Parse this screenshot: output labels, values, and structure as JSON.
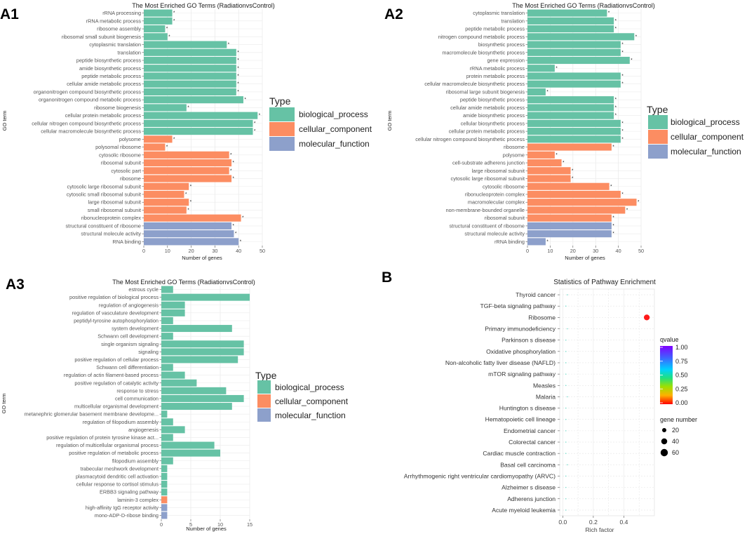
{
  "colors": {
    "biological": "#66c2a5",
    "cellular": "#fc8d62",
    "molecular": "#8da0cb",
    "grid": "#ebebeb",
    "axis": "#333333"
  },
  "chart_data": [
    {
      "id": "A1",
      "panel_label": "A1",
      "type": "bar",
      "orientation": "horizontal",
      "title": "The Most Enriched GO Terms (RadiationvsControl)",
      "xlabel": "Number of genes",
      "ylabel": "GO term",
      "xlim": [
        0,
        50
      ],
      "xticks": [
        0,
        10,
        20,
        30,
        40,
        50
      ],
      "legend": {
        "title": "Type",
        "items": [
          "biological_process",
          "cellular_component",
          "molecular_function"
        ]
      },
      "categories": [
        "rRNA processing",
        "rRNA metabolic process",
        "ribosome assembly",
        "ribosomal small subunit biogenesis",
        "cytoplasmic translation",
        "translation",
        "peptide biosynthetic process",
        "amide biosynthetic process",
        "peptide metabolic process",
        "cellular amide metabolic process",
        "organonitrogen compound biosynthetic process",
        "organonitrogen compound metabolic process",
        "ribosome biogenesis",
        "cellular protein metabolic process",
        "cellular nitrogen compound biosynthetic process",
        "cellular macromolecule biosynthetic process",
        "polysome",
        "polysomal ribosome",
        "cytosolic ribosome",
        "ribosomal subunit",
        "cytosolic part",
        "ribosome",
        "cytosolic large ribosomal subunit",
        "cytosolic small ribosomal subunit",
        "large ribosomal subunit",
        "small ribosomal subunit",
        "ribonucleoprotein complex",
        "structural constituent of ribosome",
        "structural molecule activity",
        "RNA binding"
      ],
      "values": [
        12,
        12,
        9,
        10,
        35,
        39,
        39,
        39,
        39,
        39,
        39,
        42,
        18,
        48,
        46,
        46,
        12,
        9,
        36,
        37,
        36,
        37,
        19,
        17,
        19,
        18,
        41,
        37,
        38,
        40
      ],
      "types": [
        "b",
        "b",
        "b",
        "b",
        "b",
        "b",
        "b",
        "b",
        "b",
        "b",
        "b",
        "b",
        "b",
        "b",
        "b",
        "b",
        "c",
        "c",
        "c",
        "c",
        "c",
        "c",
        "c",
        "c",
        "c",
        "c",
        "c",
        "m",
        "m",
        "m"
      ],
      "significance": [
        "*",
        "*",
        "*",
        "*",
        "*",
        "*",
        "*",
        "*",
        "*",
        "*",
        "*",
        "*",
        "*",
        "*",
        "*",
        "*",
        "*",
        "*",
        "*",
        "*",
        "*",
        "*",
        "*",
        "*",
        "*",
        "*",
        "*",
        "*",
        "*",
        "*"
      ]
    },
    {
      "id": "A2",
      "panel_label": "A2",
      "type": "bar",
      "orientation": "horizontal",
      "title": "The Most Enriched GO Terms (RadiationvsControl)",
      "xlabel": "Number of genes",
      "ylabel": "GO term",
      "xlim": [
        0,
        50
      ],
      "xticks": [
        0,
        10,
        20,
        30,
        40,
        50
      ],
      "legend": {
        "title": "Type",
        "items": [
          "biological_process",
          "cellular_component",
          "molecular_function"
        ]
      },
      "categories": [
        "cytoplasmic translation",
        "translation",
        "peptide metabolic process",
        "nitrogen compound metabolic process",
        "biosynthetic process",
        "macromolecule biosynthetic process",
        "gene expression",
        "rRNA metabolic process",
        "protein metabolic process",
        "cellular macromolecule biosynthetic process",
        "ribosomal large subunit biogenesis",
        "peptide biosynthetic process",
        "cellular amide metabolic process",
        "amide biosynthetic process",
        "cellular biosynthetic process",
        "cellular protein metabolic process",
        "cellular nitrogen compound biosynthetic process",
        "ribosome",
        "polysome",
        "cell-substrate adherens junction",
        "large ribosomal subunit",
        "cytosolic large ribosomal subunit",
        "cytosolic ribosome",
        "ribonucleoprotein complex",
        "macromolecular complex",
        "non-membrane-bounded organelle",
        "ribosomal subunit",
        "structural constituent of ribosome",
        "structural molecule activity",
        "rRNA binding"
      ],
      "values": [
        35,
        38,
        38,
        47,
        41,
        41,
        45,
        12,
        41,
        41,
        8,
        38,
        38,
        38,
        41,
        41,
        41,
        37,
        12,
        15,
        19,
        19,
        36,
        41,
        48,
        43,
        37,
        37,
        37,
        8
      ],
      "types": [
        "b",
        "b",
        "b",
        "b",
        "b",
        "b",
        "b",
        "b",
        "b",
        "b",
        "b",
        "b",
        "b",
        "b",
        "b",
        "b",
        "b",
        "c",
        "c",
        "c",
        "c",
        "c",
        "c",
        "c",
        "c",
        "c",
        "c",
        "m",
        "m",
        "m"
      ],
      "significance": [
        "*",
        "*",
        "*",
        "*",
        "*",
        "*",
        "*",
        "*",
        "*",
        "*",
        "*",
        "*",
        "*",
        "*",
        "*",
        "*",
        "*",
        "*",
        "*",
        "*",
        "*",
        "*",
        "*",
        "*",
        "*",
        "*",
        "*",
        "*",
        "*",
        "*"
      ]
    },
    {
      "id": "A3",
      "panel_label": "A3",
      "type": "bar",
      "orientation": "horizontal",
      "title": "The Most Enriched GO Terms (RadiationvsControl)",
      "xlabel": "Number of genes",
      "ylabel": "GO term",
      "xlim": [
        0,
        15
      ],
      "xticks": [
        0,
        5,
        10,
        15
      ],
      "legend": {
        "title": "Type",
        "items": [
          "biological_process",
          "cellular_component",
          "molecular_function"
        ]
      },
      "categories": [
        "estrous cycle",
        "positive regulation of biological process",
        "regulation of angiogenesis",
        "regulation of vasculature development",
        "peptidyl-tyrosine autophosphorylation",
        "system development",
        "Schwann cell development",
        "single organism signaling",
        "signaling",
        "positive regulation of cellular process",
        "Schwann cell differentiation",
        "regulation of actin filament-based process",
        "positive regulation of catalytic activity",
        "response to stress",
        "cell communication",
        "multicellular organismal development",
        "metanephric glomerular basement membrane developme...",
        "regulation of filopodium assembly",
        "angiogenesis",
        "positive regulation of protein tyrosine kinase act...",
        "regulation of multicellular organismal process",
        "positive regulation of metabolic process",
        "filopodium assembly",
        "trabecular meshwork development",
        "plasmacytoid dendritic cell activation",
        "cellular response to cortisol stimulus",
        "ERBB3 signaling pathway",
        "laminin-3 complex",
        "high-affinity IgG receptor activity",
        "mono-ADP-D-ribose binding"
      ],
      "values": [
        2,
        15,
        4,
        4,
        2,
        12,
        2,
        14,
        14,
        13,
        2,
        4,
        6,
        11,
        14,
        12,
        1,
        2,
        4,
        2,
        9,
        10,
        2,
        1,
        1,
        1,
        1,
        1,
        1,
        1
      ],
      "types": [
        "b",
        "b",
        "b",
        "b",
        "b",
        "b",
        "b",
        "b",
        "b",
        "b",
        "b",
        "b",
        "b",
        "b",
        "b",
        "b",
        "b",
        "b",
        "b",
        "b",
        "b",
        "b",
        "b",
        "b",
        "b",
        "b",
        "b",
        "c",
        "m",
        "m"
      ]
    },
    {
      "id": "B",
      "panel_label": "B",
      "type": "scatter",
      "title": "Statistics of Pathway Enrichment",
      "xlabel": "Rich factor",
      "xlim": [
        -0.02,
        0.6
      ],
      "xticks": [
        0.0,
        0.2,
        0.4
      ],
      "xtick_labels": [
        "0.0",
        "0.2",
        "0.4"
      ],
      "categories": [
        "Thyroid cancer",
        "TGF-beta signaling pathway",
        "Ribosome",
        "Primary immunodeficiency",
        "Parkinson s disease",
        "Oxidative phosphorylation",
        "Non-alcoholic fatty liver disease (NAFLD)",
        "mTOR signaling pathway",
        "Measles",
        "Malaria",
        "Huntington s disease",
        "Hematopoietic cell lineage",
        "Endometrial cancer",
        "Colorectal cancer",
        "Cardiac muscle contraction",
        "Basal cell carcinoma",
        "Arrhythmogenic right ventricular cardiomyopathy (ARVC)",
        "Alzheimer s disease",
        "Adherens junction",
        "Acute myeloid leukemia"
      ],
      "x": [
        0.03,
        0.02,
        0.55,
        0.03,
        0.02,
        0.02,
        0.02,
        0.02,
        0.02,
        0.03,
        0.02,
        0.02,
        0.02,
        0.02,
        0.02,
        0.03,
        0.02,
        0.02,
        0.02,
        0.02
      ],
      "gene_number": [
        1,
        1,
        38,
        1,
        1,
        1,
        1,
        1,
        1,
        1,
        1,
        1,
        1,
        1,
        1,
        1,
        1,
        1,
        1,
        1
      ],
      "qvalue": [
        1.0,
        1.0,
        0.0,
        1.0,
        1.0,
        1.0,
        1.0,
        1.0,
        1.0,
        1.0,
        1.0,
        1.0,
        1.0,
        1.0,
        1.0,
        1.0,
        1.0,
        1.0,
        1.0,
        1.0
      ],
      "legend": {
        "qvalue_title": "qvalue",
        "qvalue_ticks": [
          "1.00",
          "0.75",
          "0.50",
          "0.25",
          "0.00"
        ],
        "size_title": "gene number",
        "size_values": [
          20,
          40,
          60
        ],
        "size_labels": [
          "20",
          "40",
          "60"
        ]
      }
    }
  ],
  "legend_labels": {
    "biological_process": "biological_process",
    "cellular_component": "cellular_component",
    "molecular_function": "molecular_function"
  }
}
